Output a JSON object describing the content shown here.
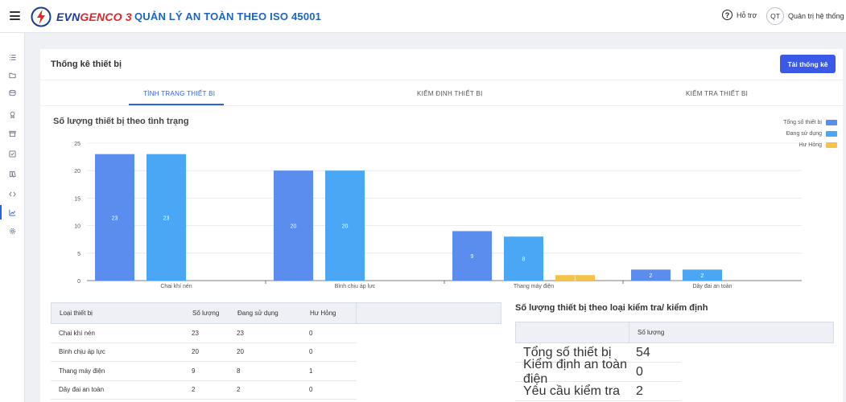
{
  "header": {
    "brand_part1": "EVN",
    "brand_part2": "GENCO 3",
    "app_title": "QUẢN LÝ AN TOÀN THEO ISO 45001",
    "help_label": "Hỗ trợ",
    "user_initials": "QT",
    "user_label": "Quản trị hệ thống"
  },
  "sidebar": {
    "items": [
      {
        "icon": "list-icon"
      },
      {
        "icon": "folder-icon"
      },
      {
        "icon": "layers-icon"
      },
      {
        "icon": "award-icon"
      },
      {
        "icon": "archive-icon"
      },
      {
        "icon": "check-square-icon"
      },
      {
        "icon": "book-icon"
      },
      {
        "icon": "code-icon"
      },
      {
        "icon": "chart-icon",
        "active": true
      },
      {
        "icon": "settings-icon"
      }
    ]
  },
  "page": {
    "title": "Thống kê thiết bị",
    "export_label": "Tải thống kê",
    "tabs": [
      {
        "label": "TÌNH TRẠNG THIẾT BỊ",
        "active": true
      },
      {
        "label": "KIỂM ĐỊNH THIẾT BỊ",
        "active": false
      },
      {
        "label": "KIỂM TRA THIẾT BỊ",
        "active": false
      }
    ]
  },
  "colors": {
    "accent": "#2f5fe3",
    "total": "#5b8def",
    "in_use": "#4aa7f5",
    "broken": "#f7c24a"
  },
  "chart_data": {
    "type": "bar",
    "title": "Số lượng thiết bị theo tình trạng",
    "categories": [
      "Chai khí nén",
      "Bình chịu áp lực",
      "Thang máy điện",
      "Dây đai an toàn"
    ],
    "series": [
      {
        "name": "Tổng số thiết bị",
        "values": [
          23,
          20,
          9,
          2
        ],
        "color": "#5b8def"
      },
      {
        "name": "Đang sử dụng",
        "values": [
          23,
          20,
          8,
          2
        ],
        "color": "#4aa7f5"
      },
      {
        "name": "Hư Hỏng",
        "values": [
          0,
          0,
          1,
          0
        ],
        "color": "#f7c24a"
      }
    ],
    "ylim": [
      0,
      25
    ],
    "yticks": [
      0,
      5,
      10,
      15,
      20,
      25
    ],
    "grid": true,
    "legend_position": "top-right",
    "xlabel": "",
    "ylabel": ""
  },
  "table1": {
    "headers": [
      "Loại thiết bị",
      "Số lượng",
      "Đang sử dụng",
      "Hư Hỏng"
    ],
    "rows": [
      [
        "Chai khí nén",
        "23",
        "23",
        "0"
      ],
      [
        "Bình chịu áp lực",
        "20",
        "20",
        "0"
      ],
      [
        "Thang máy điện",
        "9",
        "8",
        "1"
      ],
      [
        "Dây đai an toàn",
        "2",
        "2",
        "0"
      ]
    ]
  },
  "table2": {
    "title": "Số lượng thiết bị theo loại kiểm tra/ kiểm định",
    "headers": [
      "",
      "Số lượng"
    ],
    "rows": [
      [
        "Tổng số thiết bị",
        "54"
      ],
      [
        "Kiểm định an toàn điện",
        "0"
      ],
      [
        "Yêu cầu kiểm tra",
        "2"
      ]
    ]
  }
}
